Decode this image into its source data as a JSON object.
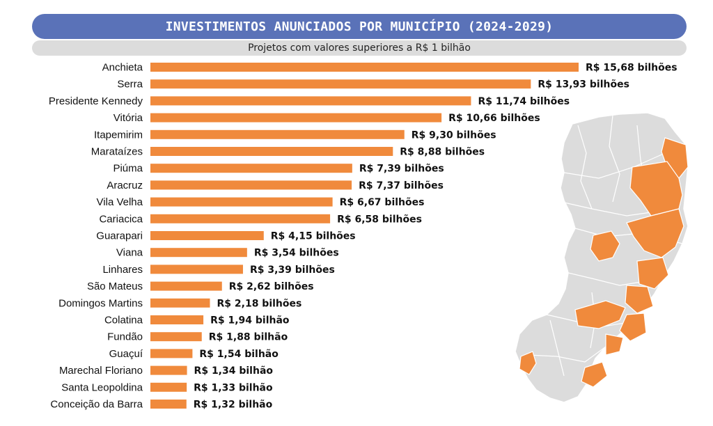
{
  "title": "INVESTIMENTOS ANUNCIADOS POR MUNICÍPIO (2024-2029)",
  "subtitle": "Projetos com valores superiores a R$ 1 bilhão",
  "colors": {
    "bar": "#f08a3c",
    "title_bg": "#5a72b8",
    "subtitle_bg": "#dcdcdc",
    "map_base": "#dcdcdc",
    "map_highlight": "#f08a3c"
  },
  "map_icon": "espirito-santo-map",
  "chart_data": {
    "type": "bar",
    "orientation": "horizontal",
    "title": "INVESTIMENTOS ANUNCIADOS POR MUNICÍPIO (2024-2029)",
    "subtitle": "Projetos com valores superiores a R$ 1 bilhão",
    "unit": "R$ bilhões",
    "xlim": [
      0,
      15.68
    ],
    "categories": [
      "Anchieta",
      "Serra",
      "Presidente Kennedy",
      "Vitória",
      "Itapemirim",
      "Marataízes",
      "Piúma",
      "Aracruz",
      "Vila Velha",
      "Cariacica",
      "Guarapari",
      "Viana",
      "Linhares",
      "São Mateus",
      "Domingos Martins",
      "Colatina",
      "Fundão",
      "Guaçuí",
      "Marechal Floriano",
      "Santa Leopoldina",
      "Conceição da Barra"
    ],
    "values": [
      15.68,
      13.93,
      11.74,
      10.66,
      9.3,
      8.88,
      7.39,
      7.37,
      6.67,
      6.58,
      4.15,
      3.54,
      3.39,
      2.62,
      2.18,
      1.94,
      1.88,
      1.54,
      1.34,
      1.33,
      1.32
    ],
    "value_labels": [
      "R$ 15,68 bilhões",
      "R$ 13,93 bilhões",
      "R$ 11,74 bilhões",
      "R$ 10,66 bilhões",
      "R$ 9,30 bilhões",
      "R$ 8,88 bilhões",
      "R$ 7,39 bilhões",
      "R$ 7,37 bilhões",
      "R$ 6,67 bilhões",
      "R$ 6,58 bilhões",
      "R$ 4,15 bilhões",
      "R$ 3,54 bilhões",
      "R$ 3,39 bilhões",
      "R$ 2,62 bilhões",
      "R$ 2,18 bilhões",
      "R$ 1,94 bilhão",
      "R$ 1,88 bilhão",
      "R$ 1,54 bilhão",
      "R$ 1,34 bilhão",
      "R$ 1,33 bilhão",
      "R$ 1,32 bilhão"
    ]
  }
}
